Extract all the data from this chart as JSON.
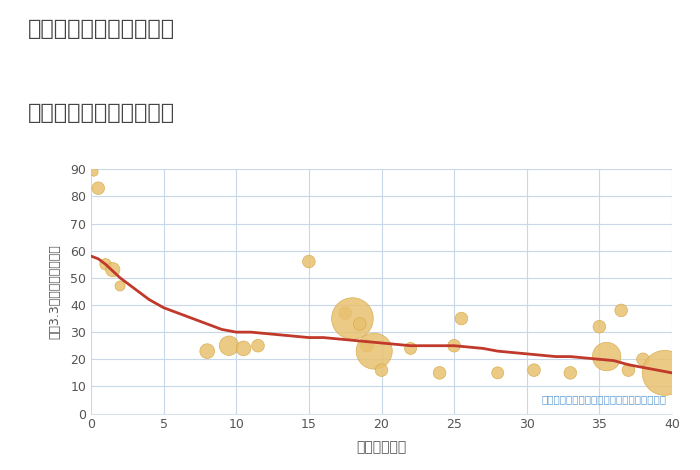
{
  "title_line1": "三重県松阪市飯高町森の",
  "title_line2": "築年数別中古戸建て価格",
  "xlabel": "築年数（年）",
  "ylabel": "坪（3.3㎡）単価（万円）",
  "annotation": "円の大きさは、取引のあった物件面積を示す",
  "xlim": [
    0,
    40
  ],
  "ylim": [
    0,
    90
  ],
  "xticks": [
    0,
    5,
    10,
    15,
    20,
    25,
    30,
    35,
    40
  ],
  "yticks": [
    0,
    10,
    20,
    30,
    40,
    50,
    60,
    70,
    80,
    90
  ],
  "bubble_color": "#E8C170",
  "bubble_edge_color": "#D4A843",
  "line_color": "#C0392B",
  "grid_color": "#C8D8E8",
  "background_color": "#FFFFFF",
  "title_color": "#444444",
  "annotation_color": "#5B9BD5",
  "scatter_x": [
    0.2,
    0.5,
    1.0,
    1.5,
    2.0,
    8.0,
    9.5,
    10.5,
    11.5,
    15.0,
    17.5,
    18.0,
    18.5,
    19.0,
    19.5,
    20.0,
    22.0,
    24.0,
    25.0,
    25.5,
    28.0,
    30.5,
    33.0,
    35.0,
    35.5,
    36.5,
    37.0,
    38.0,
    39.5
  ],
  "scatter_y": [
    89,
    83,
    55,
    53,
    47,
    23,
    25,
    24,
    25,
    56,
    37,
    35,
    33,
    25,
    23,
    16,
    24,
    15,
    25,
    35,
    15,
    16,
    15,
    32,
    21,
    38,
    16,
    20,
    15
  ],
  "scatter_size": [
    25,
    55,
    45,
    70,
    35,
    75,
    130,
    75,
    55,
    55,
    55,
    600,
    55,
    55,
    450,
    55,
    50,
    55,
    55,
    55,
    50,
    55,
    55,
    55,
    280,
    55,
    55,
    55,
    700
  ],
  "trend_x": [
    0,
    0.5,
    1,
    2,
    3,
    4,
    5,
    6,
    7,
    8,
    9,
    10,
    11,
    12,
    13,
    14,
    15,
    16,
    17,
    18,
    19,
    20,
    21,
    22,
    23,
    24,
    25,
    26,
    27,
    28,
    29,
    30,
    31,
    32,
    33,
    34,
    35,
    36,
    37,
    38,
    39,
    40
  ],
  "trend_y": [
    58,
    57,
    55,
    50,
    46,
    42,
    39,
    37,
    35,
    33,
    31,
    30,
    30,
    29.5,
    29,
    28.5,
    28,
    28,
    27.5,
    27,
    26.5,
    26,
    25.5,
    25,
    25,
    25,
    25,
    24.5,
    24,
    23,
    22.5,
    22,
    21.5,
    21,
    21,
    20.5,
    20,
    19.5,
    18,
    17,
    16,
    15
  ]
}
